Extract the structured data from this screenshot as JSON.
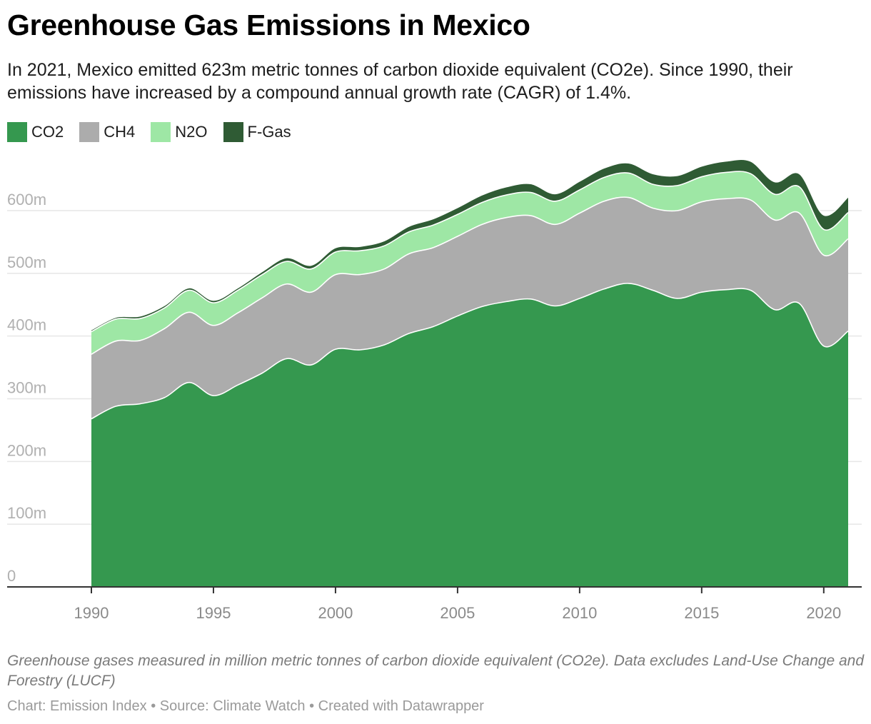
{
  "title": "Greenhouse Gas Emissions in Mexico",
  "subtitle": "In 2021, Mexico emitted 623m metric tonnes of carbon dioxide equivalent (CO2e). Since 1990, their emissions have increased by a compound annual growth rate (CAGR) of 1.4%.",
  "note": "Greenhouse gases measured in million metric tonnes of carbon dioxide equivalent (CO2e). Data excludes Land-Use Change and Forestry (LUCF)",
  "credit": "Chart: Emission Index • Source: Climate Watch • Created with Datawrapper",
  "chart_data": {
    "type": "area",
    "stacked": true,
    "x": [
      1990,
      1991,
      1992,
      1993,
      1994,
      1995,
      1996,
      1997,
      1998,
      1999,
      2000,
      2001,
      2002,
      2003,
      2004,
      2005,
      2006,
      2007,
      2008,
      2009,
      2010,
      2011,
      2012,
      2013,
      2014,
      2015,
      2016,
      2017,
      2018,
      2019,
      2020,
      2021
    ],
    "series": [
      {
        "name": "CO2",
        "color": "#35984f",
        "values": [
          268,
          288,
          292,
          302,
          326,
          305,
          322,
          341,
          364,
          354,
          379,
          378,
          386,
          404,
          415,
          432,
          447,
          455,
          459,
          448,
          460,
          475,
          484,
          473,
          460,
          470,
          474,
          473,
          442,
          452,
          384,
          408
        ]
      },
      {
        "name": "CH4",
        "color": "#acacac",
        "values": [
          103,
          104,
          101,
          110,
          112,
          112,
          115,
          120,
          119,
          116,
          119,
          120,
          121,
          127,
          126,
          127,
          131,
          134,
          133,
          130,
          136,
          140,
          137,
          131,
          140,
          144,
          145,
          144,
          143,
          144,
          145,
          147
        ]
      },
      {
        "name": "N2O",
        "color": "#9ee7a5",
        "values": [
          36,
          35,
          35,
          33,
          35,
          36,
          36,
          37,
          36,
          37,
          36,
          38,
          37,
          35,
          36,
          35,
          35,
          36,
          37,
          37,
          37,
          38,
          39,
          38,
          40,
          40,
          42,
          42,
          41,
          42,
          41,
          42
        ]
      },
      {
        "name": "F-Gas",
        "color": "#2f5b34",
        "values": [
          3,
          3,
          4,
          4,
          4,
          4,
          4,
          5,
          6,
          6,
          7,
          7,
          8,
          9,
          10,
          11,
          12,
          13,
          14,
          12,
          14,
          15,
          16,
          17,
          16,
          17,
          18,
          20,
          20,
          21,
          23,
          25
        ]
      }
    ],
    "y_ticks": [
      "0",
      "100m",
      "200m",
      "300m",
      "400m",
      "500m",
      "600m"
    ],
    "y_tick_values": [
      0,
      100,
      200,
      300,
      400,
      500,
      600
    ],
    "x_ticks": [
      "1990",
      "1995",
      "2000",
      "2005",
      "2010",
      "2015",
      "2020"
    ],
    "x_tick_values": [
      1990,
      1995,
      2000,
      2005,
      2010,
      2015,
      2020
    ],
    "ylim": [
      0,
      700
    ],
    "xlim": [
      1987.1,
      2022.1
    ],
    "grid": true,
    "legend_position": "top-left"
  }
}
